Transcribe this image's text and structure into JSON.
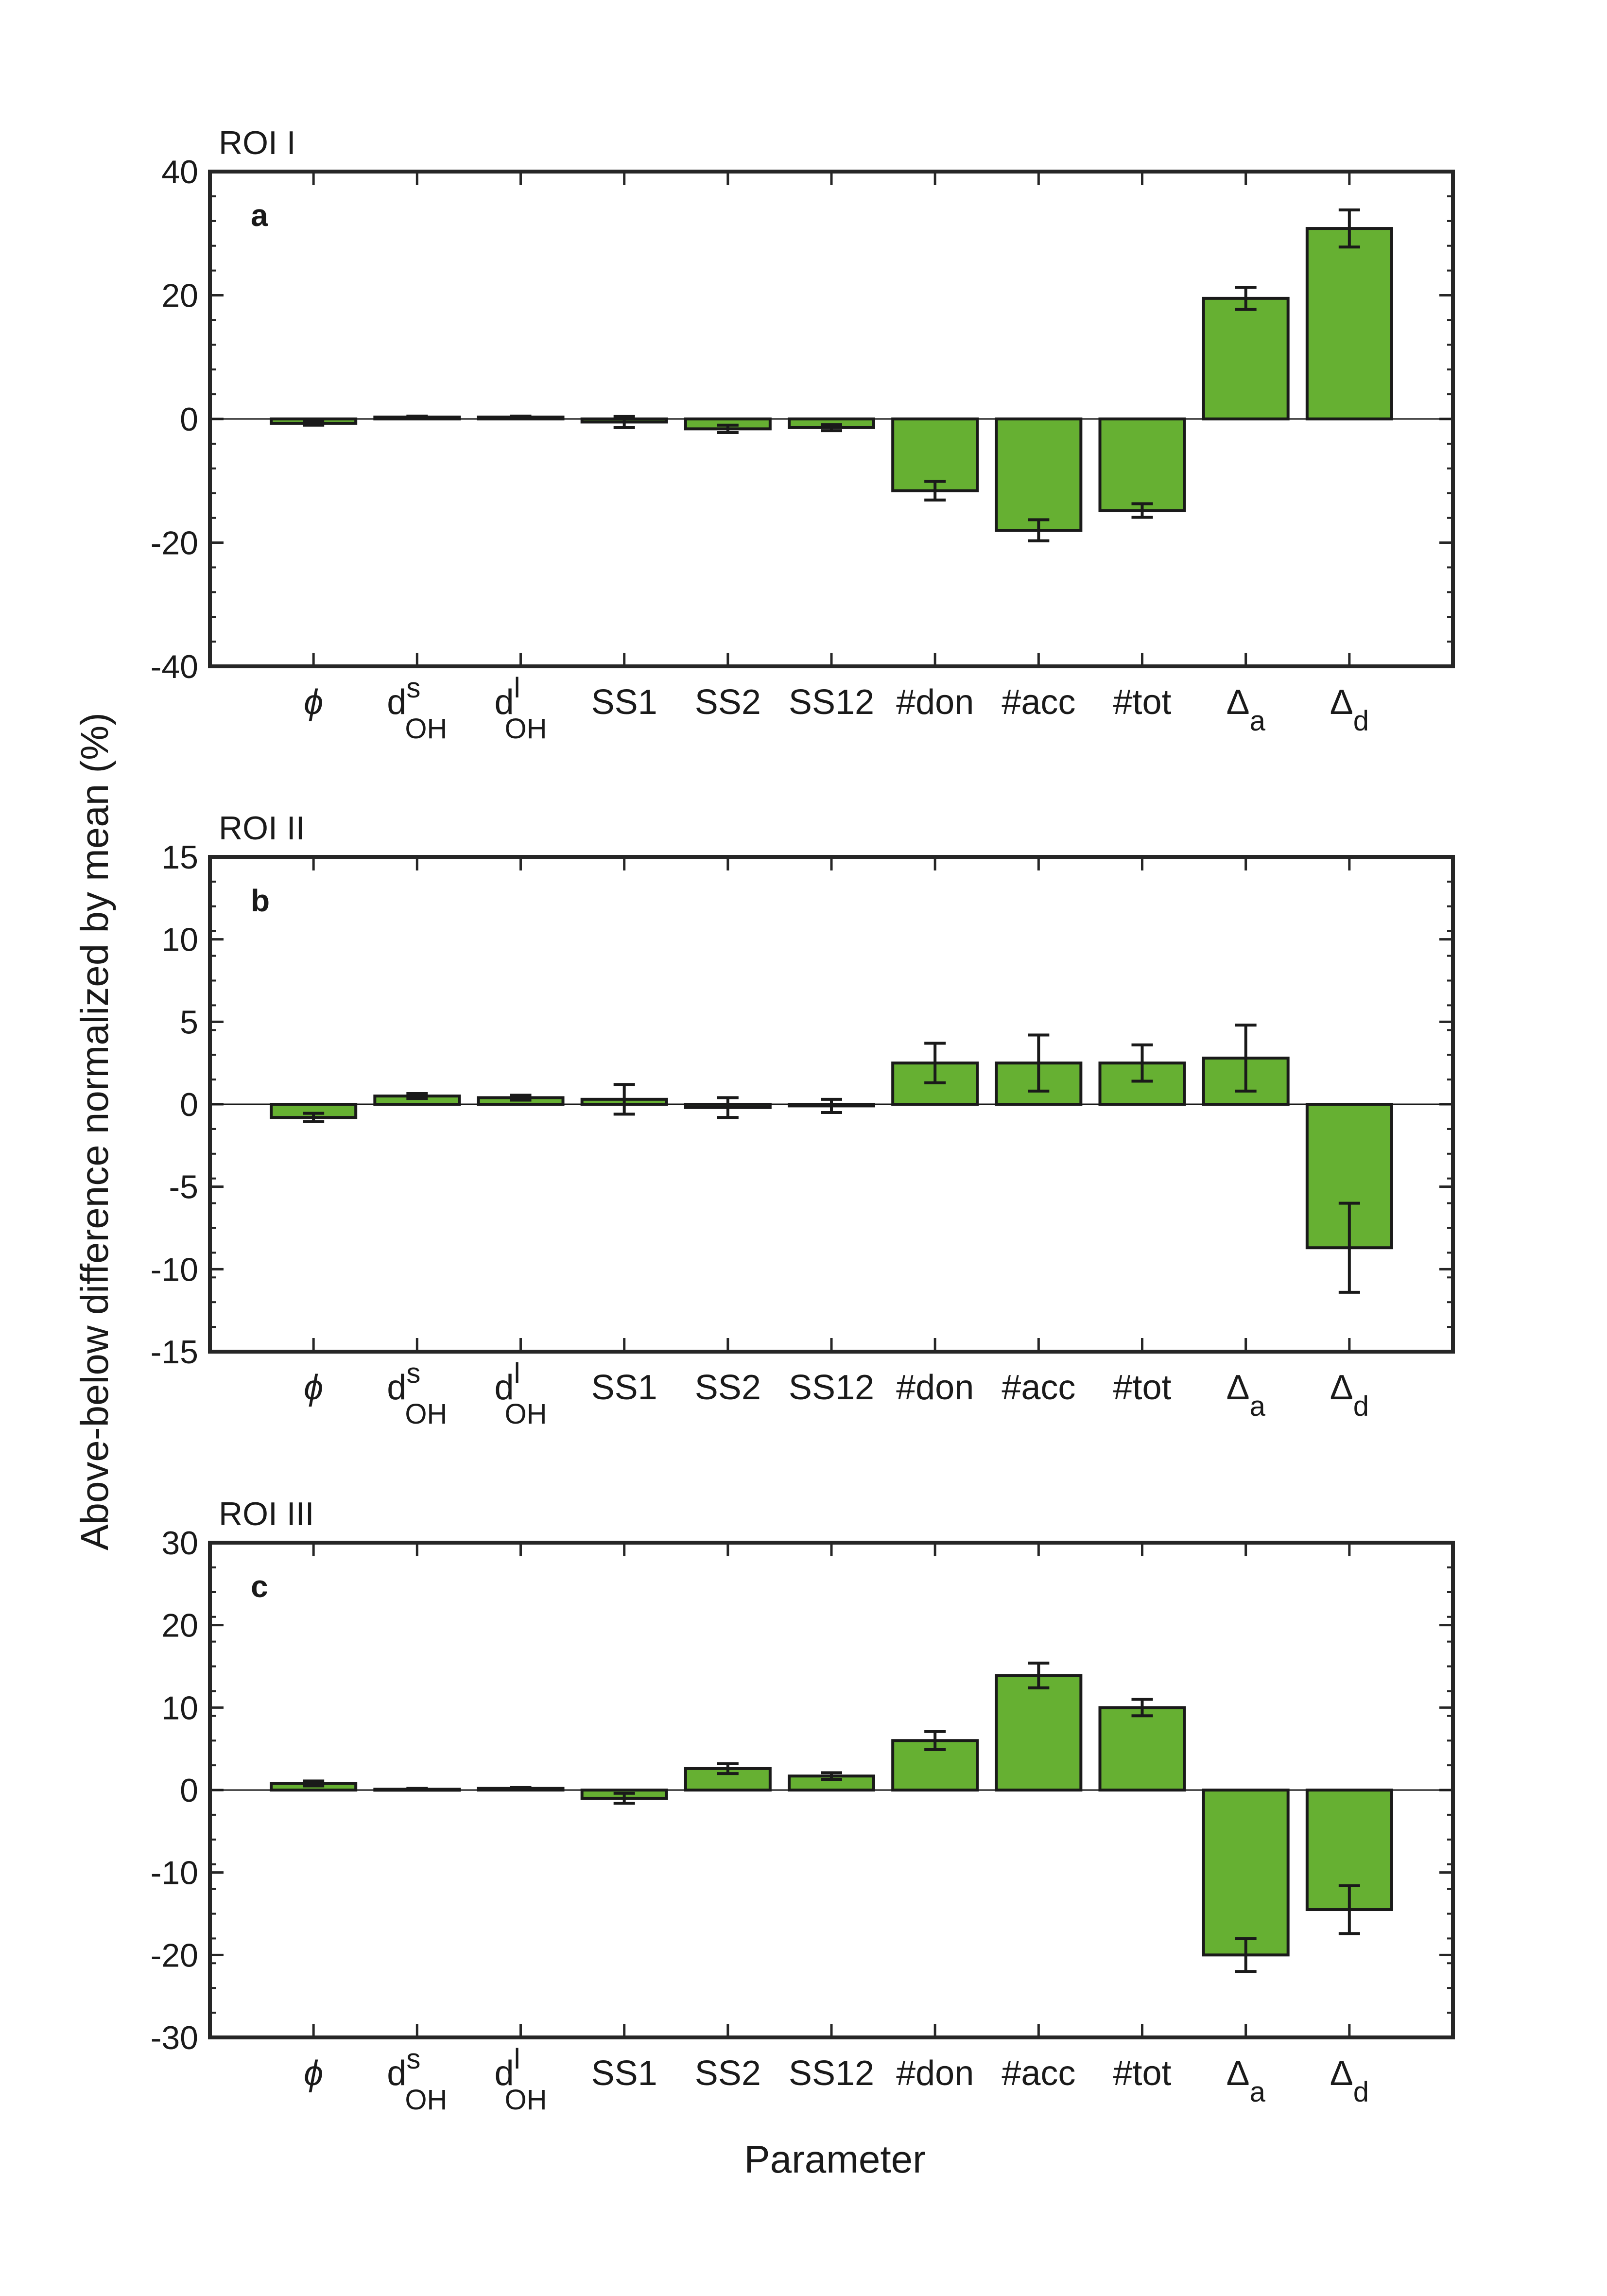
{
  "ylabel": "Above-below difference normalized by mean (%)",
  "xlabel": "Parameter",
  "bar_color": "#66b032",
  "categories": [
    {
      "main": "ϕ",
      "sup": "",
      "sub": "",
      "italic": true
    },
    {
      "main": "d",
      "sup": "s",
      "sub": "OH"
    },
    {
      "main": "d",
      "sup": "l",
      "sub": "OH"
    },
    {
      "main": "SS1",
      "sup": "",
      "sub": ""
    },
    {
      "main": "SS2",
      "sup": "",
      "sub": ""
    },
    {
      "main": "SS12",
      "sup": "",
      "sub": ""
    },
    {
      "main": "#don",
      "sup": "",
      "sub": ""
    },
    {
      "main": "#acc",
      "sup": "",
      "sub": ""
    },
    {
      "main": "#tot",
      "sup": "",
      "sub": ""
    },
    {
      "main": "Δ",
      "sup": "",
      "sub": "a"
    },
    {
      "main": "Δ",
      "sup": "",
      "sub": "d"
    }
  ],
  "chart_data": [
    {
      "type": "bar",
      "title": "ROI I",
      "panel": "a",
      "ylim": [
        -40,
        40
      ],
      "yticks": [
        40,
        20,
        0,
        -20,
        -40
      ],
      "values": [
        -0.7,
        0.3,
        0.3,
        -0.5,
        -1.6,
        -1.4,
        -11.6,
        -18.0,
        -14.8,
        19.5,
        30.8
      ],
      "errors": [
        0.3,
        0.15,
        0.15,
        0.9,
        0.6,
        0.5,
        1.5,
        1.7,
        1.1,
        1.8,
        3.0
      ]
    },
    {
      "type": "bar",
      "title": "ROI II",
      "panel": "b",
      "ylim": [
        -15,
        15
      ],
      "yticks": [
        15,
        10,
        5,
        0,
        -5,
        -10,
        -15
      ],
      "values": [
        -0.8,
        0.5,
        0.4,
        0.3,
        -0.2,
        -0.1,
        2.5,
        2.5,
        2.5,
        2.8,
        -8.7
      ],
      "errors": [
        0.25,
        0.15,
        0.15,
        0.9,
        0.6,
        0.4,
        1.2,
        1.7,
        1.1,
        2.0,
        2.7
      ]
    },
    {
      "type": "bar",
      "title": "ROI III",
      "panel": "c",
      "ylim": [
        -30,
        30
      ],
      "yticks": [
        30,
        20,
        10,
        0,
        -10,
        -20,
        -30
      ],
      "values": [
        0.8,
        0.1,
        0.2,
        -1.0,
        2.6,
        1.7,
        6.0,
        13.9,
        10.0,
        -20.0,
        -14.5
      ],
      "errors": [
        0.3,
        0.1,
        0.1,
        0.6,
        0.6,
        0.4,
        1.1,
        1.5,
        1.0,
        2.0,
        2.9
      ]
    }
  ]
}
